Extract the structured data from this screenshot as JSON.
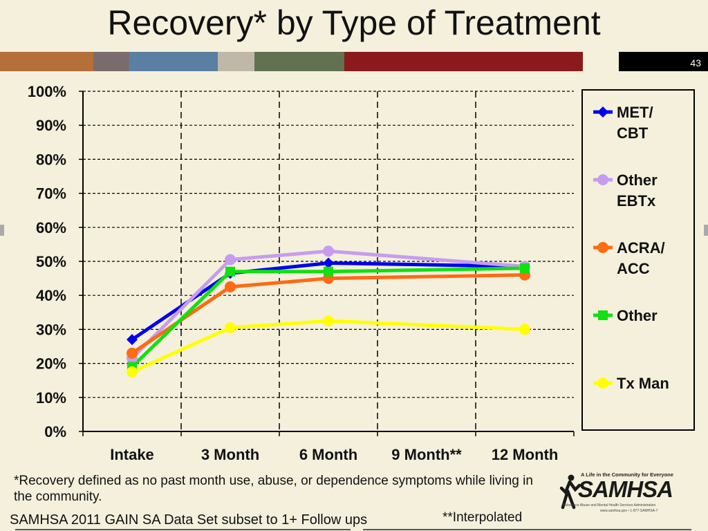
{
  "slide": {
    "title": "Recovery* by Type of Treatment",
    "number": "43",
    "band_colors": [
      "#b5703a",
      "#7a6c6c",
      "#5a7fa3",
      "#bfb7a8",
      "#627152",
      "#8a1a1c",
      "#f4f0dc",
      "#000000"
    ],
    "footnote": "*Recovery defined as no past month use, abuse, or dependence symptoms while living in the community.",
    "source": "SAMHSA 2011 GAIN SA Data Set subset to 1+ Follow ups",
    "interpolated_note": "**Interpolated",
    "logo": {
      "tagline": "A Life in the Community for Everyone",
      "name": "SAMHSA",
      "subtitle": "Substance Abuse and Mental Health Services Administration",
      "url": "www.samhsa.gov • 1-877-SAMHSA-7"
    }
  },
  "chart_data": {
    "type": "line",
    "categories": [
      "Intake",
      "3 Month",
      "6 Month",
      "9 Month**",
      "12 Month"
    ],
    "y_ticks": [
      "0%",
      "10%",
      "20%",
      "30%",
      "40%",
      "50%",
      "60%",
      "70%",
      "80%",
      "90%",
      "100%"
    ],
    "ylim": [
      0,
      100
    ],
    "grid": true,
    "legend_position": "right",
    "series": [
      {
        "name": "MET/ CBT",
        "legend_lines": [
          "MET/",
          "CBT"
        ],
        "color": "#0000ee",
        "marker": "diamond",
        "values": [
          27,
          46.5,
          49.5,
          null,
          48.5
        ]
      },
      {
        "name": "Other EBTx",
        "legend_lines": [
          "Other",
          "EBTx"
        ],
        "color": "#c79cf0",
        "marker": "circle",
        "values": [
          21.5,
          50.5,
          53,
          null,
          48.5
        ]
      },
      {
        "name": "ACRA/ ACC",
        "legend_lines": [
          "ACRA/",
          "ACC"
        ],
        "color": "#ff6a13",
        "marker": "circle",
        "values": [
          23,
          42.5,
          45,
          null,
          46
        ]
      },
      {
        "name": "Other",
        "legend_lines": [
          "Other"
        ],
        "color": "#11e011",
        "marker": "square",
        "values": [
          19,
          47,
          47,
          null,
          48
        ]
      },
      {
        "name": "Tx Man",
        "legend_lines": [
          "Tx Man"
        ],
        "color": "#ffff00",
        "marker": "circle",
        "values": [
          17.5,
          30.5,
          32.5,
          null,
          30
        ]
      }
    ]
  }
}
